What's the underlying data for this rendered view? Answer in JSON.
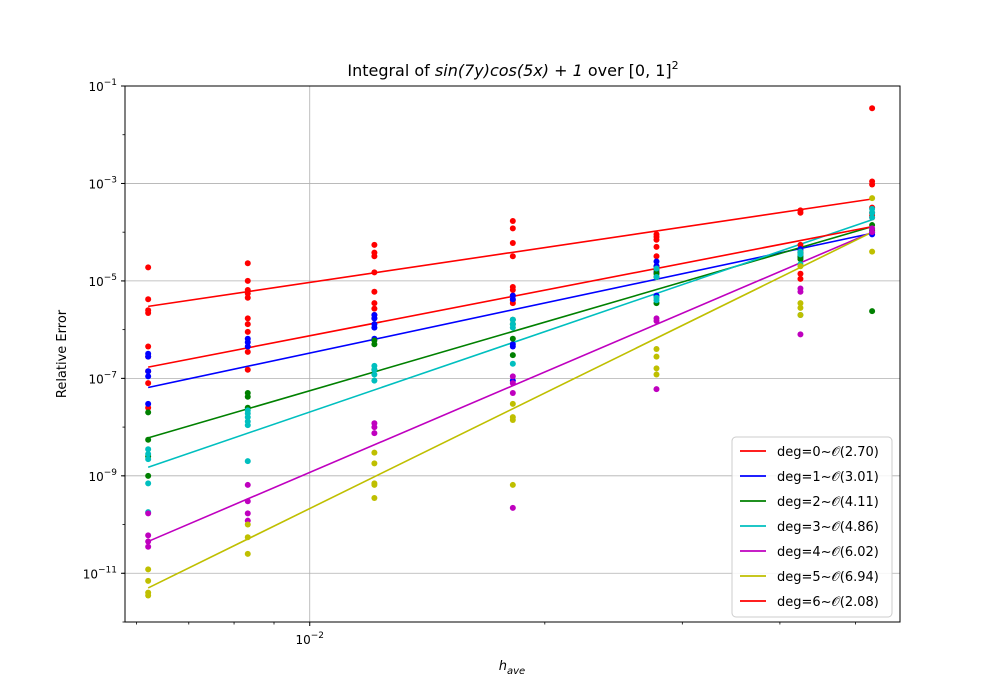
{
  "chart_data": {
    "type": "scatter",
    "title": "Integral of sin(7y)cos(5x) + 1 over [0, 1]²",
    "title_parts": {
      "prefix": "Integral of ",
      "expr": "sin(7y)cos(5x) + 1",
      "mid": " over ",
      "domain": "[0, 1]",
      "sup": "2"
    },
    "xlabel": "h",
    "xlabel_sub": "ave",
    "ylabel": "Relative Error",
    "xscale": "log",
    "yscale": "log",
    "xlim": [
      0.0058,
      0.057
    ],
    "ylim": [
      1e-12,
      0.1
    ],
    "xticks": [
      {
        "value": 0.01,
        "base": "10",
        "exp": "−2"
      }
    ],
    "yticks": [
      {
        "value": 0.1,
        "base": "10",
        "exp": "−1"
      },
      {
        "value": 0.001,
        "base": "10",
        "exp": "−3"
      },
      {
        "value": 1e-05,
        "base": "10",
        "exp": "−5"
      },
      {
        "value": 1e-07,
        "base": "10",
        "exp": "−7"
      },
      {
        "value": 1e-09,
        "base": "10",
        "exp": "−9"
      },
      {
        "value": 1e-11,
        "base": "10",
        "exp": "−11"
      }
    ],
    "grid": true,
    "legend_position": "lower right",
    "x_levels": [
      0.00621,
      0.00833,
      0.0121,
      0.0182,
      0.0278,
      0.0425,
      0.0525
    ],
    "series": [
      {
        "name": "deg=0~𝒪(2.70)",
        "color": "#ff0000",
        "fit": [
          [
            0.00621,
            3e-06
          ],
          [
            0.0525,
            0.00048
          ]
        ],
        "points": [
          [
            0.00621,
            1.9e-05
          ],
          [
            0.00621,
            4.2e-06
          ],
          [
            0.00621,
            2.5e-06
          ],
          [
            0.00621,
            2.2e-06
          ],
          [
            0.00621,
            4.5e-07
          ],
          [
            0.00621,
            2.8e-07
          ],
          [
            0.00621,
            1.4e-07
          ],
          [
            0.00621,
            8e-08
          ],
          [
            0.00621,
            2.5e-08
          ],
          [
            0.00833,
            2.3e-05
          ],
          [
            0.00833,
            1e-05
          ],
          [
            0.00833,
            6.5e-06
          ],
          [
            0.00833,
            5.5e-06
          ],
          [
            0.00833,
            4.5e-06
          ],
          [
            0.00833,
            1.7e-06
          ],
          [
            0.00833,
            1.3e-06
          ],
          [
            0.00833,
            9e-07
          ],
          [
            0.00833,
            3.5e-07
          ],
          [
            0.00833,
            1.5e-07
          ],
          [
            0.0121,
            5.5e-05
          ],
          [
            0.0121,
            3.8e-05
          ],
          [
            0.0121,
            3.2e-05
          ],
          [
            0.0121,
            1.5e-05
          ],
          [
            0.0121,
            6e-06
          ],
          [
            0.0121,
            3.5e-06
          ],
          [
            0.0121,
            2.7e-06
          ],
          [
            0.0121,
            2e-06
          ],
          [
            0.0121,
            1.7e-06
          ],
          [
            0.0182,
            0.00017
          ],
          [
            0.0182,
            0.00012
          ],
          [
            0.0182,
            6e-05
          ],
          [
            0.0182,
            3.2e-05
          ],
          [
            0.0182,
            7.5e-06
          ],
          [
            0.0182,
            6.5e-06
          ],
          [
            0.0182,
            5e-06
          ],
          [
            0.0182,
            4e-06
          ],
          [
            0.0182,
            3.5e-06
          ],
          [
            0.0278,
            9e-05
          ],
          [
            0.0278,
            8e-05
          ],
          [
            0.0278,
            7e-05
          ],
          [
            0.0278,
            5e-05
          ],
          [
            0.0278,
            3.2e-05
          ],
          [
            0.0278,
            2e-05
          ],
          [
            0.0278,
            1.5e-05
          ],
          [
            0.0278,
            1.2e-05
          ],
          [
            0.0425,
            0.00028
          ],
          [
            0.0425,
            0.00025
          ],
          [
            0.0425,
            5.5e-05
          ],
          [
            0.0425,
            4.2e-05
          ],
          [
            0.0425,
            3.8e-05
          ],
          [
            0.0425,
            1.4e-05
          ],
          [
            0.0425,
            1.1e-05
          ],
          [
            0.0525,
            0.035
          ],
          [
            0.0525,
            0.0011
          ],
          [
            0.0525,
            0.00095
          ],
          [
            0.0525,
            0.00032
          ],
          [
            0.0525,
            0.00025
          ],
          [
            0.0525,
            0.00022
          ],
          [
            0.0525,
            0.0002
          ]
        ]
      },
      {
        "name": "deg=1~𝒪(3.01)",
        "color": "#0000ff",
        "fit": [
          [
            0.00621,
            6.5e-08
          ],
          [
            0.0525,
            9.5e-05
          ]
        ],
        "points": [
          [
            0.00621,
            3.2e-07
          ],
          [
            0.00621,
            2.8e-07
          ],
          [
            0.00621,
            1.4e-07
          ],
          [
            0.00621,
            1.1e-07
          ],
          [
            0.00621,
            3e-08
          ],
          [
            0.00833,
            6.5e-07
          ],
          [
            0.00833,
            5.5e-07
          ],
          [
            0.00833,
            4.5e-07
          ],
          [
            0.0121,
            2e-06
          ],
          [
            0.0121,
            1.7e-06
          ],
          [
            0.0121,
            1.3e-06
          ],
          [
            0.0121,
            1.1e-06
          ],
          [
            0.0121,
            6.5e-07
          ],
          [
            0.0182,
            5e-06
          ],
          [
            0.0182,
            4.2e-06
          ],
          [
            0.0182,
            5e-07
          ],
          [
            0.0182,
            4.5e-07
          ],
          [
            0.0182,
            9e-08
          ],
          [
            0.0278,
            2.5e-05
          ],
          [
            0.0278,
            2e-05
          ],
          [
            0.0278,
            1.5e-05
          ],
          [
            0.0278,
            5e-06
          ],
          [
            0.0425,
            4.5e-05
          ],
          [
            0.0425,
            3.5e-05
          ],
          [
            0.0425,
            3e-05
          ],
          [
            0.0525,
            0.0001
          ],
          [
            0.0525,
            9e-05
          ]
        ]
      },
      {
        "name": "deg=2~𝒪(4.11)",
        "color": "#008000",
        "fit": [
          [
            0.00621,
            6e-09
          ],
          [
            0.0525,
            0.00013
          ]
        ],
        "points": [
          [
            0.00621,
            5.5e-09
          ],
          [
            0.00621,
            2.5e-09
          ],
          [
            0.00621,
            1e-09
          ],
          [
            0.00621,
            2e-08
          ],
          [
            0.00833,
            5e-08
          ],
          [
            0.00833,
            4.2e-08
          ],
          [
            0.00833,
            2.5e-08
          ],
          [
            0.0121,
            6e-07
          ],
          [
            0.0121,
            5e-07
          ],
          [
            0.0121,
            1.5e-07
          ],
          [
            0.0182,
            6.5e-07
          ],
          [
            0.0182,
            3e-07
          ],
          [
            0.0182,
            1.6e-06
          ],
          [
            0.0182,
            1.3e-06
          ],
          [
            0.0278,
            1.7e-05
          ],
          [
            0.0278,
            1.2e-05
          ],
          [
            0.0278,
            1.4e-05
          ],
          [
            0.0278,
            3.5e-06
          ],
          [
            0.0425,
            3.8e-05
          ],
          [
            0.0425,
            3.2e-05
          ],
          [
            0.0425,
            2.8e-05
          ],
          [
            0.0525,
            0.00014
          ],
          [
            0.0525,
            0.00011
          ],
          [
            0.0525,
            2.4e-06
          ]
        ]
      },
      {
        "name": "deg=3~𝒪(4.86)",
        "color": "#00bfbf",
        "fit": [
          [
            0.00621,
            1.5e-09
          ],
          [
            0.0525,
            0.00018
          ]
        ],
        "points": [
          [
            0.00621,
            3.5e-09
          ],
          [
            0.00621,
            2.8e-09
          ],
          [
            0.00621,
            2.2e-09
          ],
          [
            0.00621,
            7e-10
          ],
          [
            0.00621,
            1.8e-10
          ],
          [
            0.00833,
            2.2e-08
          ],
          [
            0.00833,
            1.9e-08
          ],
          [
            0.00833,
            1.6e-08
          ],
          [
            0.00833,
            1.3e-08
          ],
          [
            0.00833,
            1.1e-08
          ],
          [
            0.00833,
            2e-09
          ],
          [
            0.0121,
            1.8e-07
          ],
          [
            0.0121,
            1.5e-07
          ],
          [
            0.0121,
            1.2e-07
          ],
          [
            0.0121,
            9e-08
          ],
          [
            0.0182,
            1.6e-06
          ],
          [
            0.0182,
            1.3e-06
          ],
          [
            0.0182,
            1.1e-06
          ],
          [
            0.0182,
            2e-07
          ],
          [
            0.0278,
            1.8e-05
          ],
          [
            0.0278,
            1.2e-05
          ],
          [
            0.0278,
            4.5e-06
          ],
          [
            0.0278,
            4e-06
          ],
          [
            0.0425,
            4e-05
          ],
          [
            0.0425,
            3.5e-05
          ],
          [
            0.0425,
            2.2e-05
          ],
          [
            0.0425,
            2e-06
          ],
          [
            0.0525,
            0.0003
          ],
          [
            0.0525,
            0.00025
          ],
          [
            0.0525,
            0.0002
          ]
        ]
      },
      {
        "name": "deg=4~𝒪(6.02)",
        "color": "#bf00bf",
        "fit": [
          [
            0.00621,
            4.5e-11
          ],
          [
            0.0525,
            0.0001
          ]
        ],
        "points": [
          [
            0.00621,
            6e-11
          ],
          [
            0.00621,
            4.5e-11
          ],
          [
            0.00621,
            3.5e-11
          ],
          [
            0.00621,
            1.7e-10
          ],
          [
            0.00833,
            6.5e-10
          ],
          [
            0.00833,
            3e-10
          ],
          [
            0.00833,
            1.7e-10
          ],
          [
            0.00833,
            1.2e-10
          ],
          [
            0.0121,
            1.2e-08
          ],
          [
            0.0121,
            1e-08
          ],
          [
            0.0121,
            7.5e-09
          ],
          [
            0.0182,
            1.1e-07
          ],
          [
            0.0182,
            8e-08
          ],
          [
            0.0182,
            5e-08
          ],
          [
            0.0182,
            2.2e-10
          ],
          [
            0.0278,
            1.7e-06
          ],
          [
            0.0278,
            1.5e-06
          ],
          [
            0.0278,
            6e-08
          ],
          [
            0.0425,
            7e-06
          ],
          [
            0.0425,
            6e-06
          ],
          [
            0.0425,
            8e-07
          ],
          [
            0.0525,
            0.00012
          ],
          [
            0.0525,
            0.0001
          ]
        ]
      },
      {
        "name": "deg=5~𝒪(6.94)",
        "color": "#bfbf00",
        "fit": [
          [
            0.00621,
            5e-12
          ],
          [
            0.0525,
            0.0001
          ]
        ],
        "points": [
          [
            0.00621,
            1.2e-11
          ],
          [
            0.00621,
            7e-12
          ],
          [
            0.00621,
            4e-12
          ],
          [
            0.00621,
            3.5e-12
          ],
          [
            0.00833,
            1e-10
          ],
          [
            0.00833,
            5.5e-11
          ],
          [
            0.00833,
            2.5e-11
          ],
          [
            0.0121,
            3e-09
          ],
          [
            0.0121,
            1.8e-09
          ],
          [
            0.0121,
            7e-10
          ],
          [
            0.0121,
            6.5e-10
          ],
          [
            0.0121,
            3.5e-10
          ],
          [
            0.0182,
            3e-08
          ],
          [
            0.0182,
            1.6e-08
          ],
          [
            0.0182,
            1.4e-08
          ],
          [
            0.0182,
            6.5e-10
          ],
          [
            0.0278,
            4e-07
          ],
          [
            0.0278,
            2.8e-07
          ],
          [
            0.0278,
            1.6e-07
          ],
          [
            0.0278,
            1.2e-07
          ],
          [
            0.0425,
            2e-05
          ],
          [
            0.0425,
            3.5e-06
          ],
          [
            0.0425,
            2.8e-06
          ],
          [
            0.0425,
            2e-06
          ],
          [
            0.0525,
            0.0005
          ],
          [
            0.0525,
            4e-05
          ]
        ]
      },
      {
        "name": "deg=6~𝒪(2.08)",
        "color": "#ff0000",
        "fit": [
          [
            0.00621,
            1.7e-07
          ],
          [
            0.0525,
            0.00013
          ]
        ],
        "points": []
      }
    ]
  }
}
